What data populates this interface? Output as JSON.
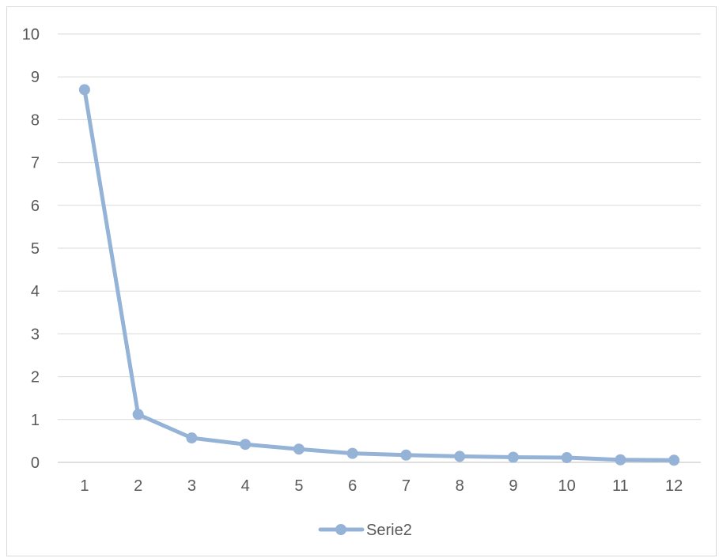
{
  "chart_data": {
    "type": "line",
    "title": "",
    "xlabel": "",
    "ylabel": "",
    "categories": [
      "1",
      "2",
      "3",
      "4",
      "5",
      "6",
      "7",
      "8",
      "9",
      "10",
      "11",
      "12"
    ],
    "ylim": [
      0,
      10
    ],
    "yticks": [
      "0",
      "1",
      "2",
      "3",
      "4",
      "5",
      "6",
      "7",
      "8",
      "9",
      "10"
    ],
    "grid": true,
    "legend_position": "bottom",
    "series": [
      {
        "name": "Serie2",
        "color": "#95b3d7",
        "values": [
          8.7,
          1.12,
          0.57,
          0.42,
          0.31,
          0.21,
          0.17,
          0.14,
          0.12,
          0.11,
          0.06,
          0.05
        ]
      }
    ]
  }
}
